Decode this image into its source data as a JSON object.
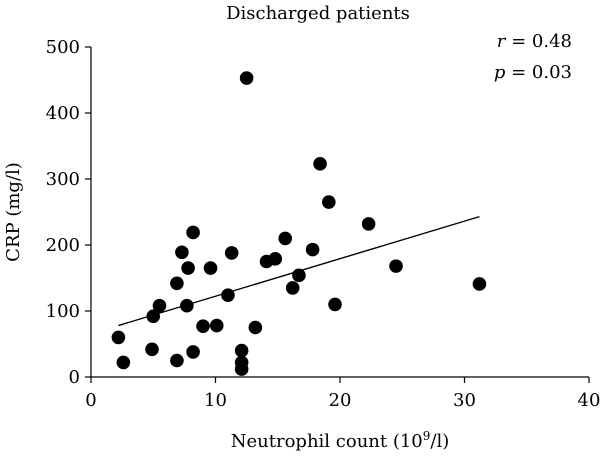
{
  "chart_data": {
    "type": "scatter",
    "title": "Discharged patients",
    "xlabel_main": "Neutrophil count (10",
    "xlabel_sup": "9",
    "xlabel_tail": "/l)",
    "ylabel": "CRP (mg/l)",
    "xlim": [
      0,
      40
    ],
    "ylim": [
      0,
      500
    ],
    "xticks": [
      0,
      10,
      20,
      30,
      40
    ],
    "yticks": [
      0,
      100,
      200,
      300,
      400,
      500
    ],
    "grid": false,
    "stats": {
      "r_symbol": "r",
      "r_value": " = 0.48",
      "p_symbol": "p",
      "p_value": " = 0.03"
    },
    "trendline": {
      "x": [
        2.2,
        31.2
      ],
      "y": [
        78,
        243
      ]
    },
    "points": [
      {
        "x": 2.2,
        "y": 60
      },
      {
        "x": 2.6,
        "y": 22
      },
      {
        "x": 4.9,
        "y": 42
      },
      {
        "x": 5.0,
        "y": 92
      },
      {
        "x": 5.5,
        "y": 108
      },
      {
        "x": 6.9,
        "y": 25
      },
      {
        "x": 6.9,
        "y": 142
      },
      {
        "x": 7.3,
        "y": 189
      },
      {
        "x": 7.7,
        "y": 108
      },
      {
        "x": 7.8,
        "y": 165
      },
      {
        "x": 8.2,
        "y": 38
      },
      {
        "x": 8.2,
        "y": 219
      },
      {
        "x": 9.0,
        "y": 77
      },
      {
        "x": 9.6,
        "y": 165
      },
      {
        "x": 10.1,
        "y": 78
      },
      {
        "x": 11.0,
        "y": 124
      },
      {
        "x": 11.3,
        "y": 188
      },
      {
        "x": 12.1,
        "y": 40
      },
      {
        "x": 12.1,
        "y": 22
      },
      {
        "x": 12.1,
        "y": 12
      },
      {
        "x": 12.5,
        "y": 453
      },
      {
        "x": 13.2,
        "y": 75
      },
      {
        "x": 14.1,
        "y": 175
      },
      {
        "x": 14.8,
        "y": 179
      },
      {
        "x": 15.6,
        "y": 210
      },
      {
        "x": 16.2,
        "y": 135
      },
      {
        "x": 16.7,
        "y": 154
      },
      {
        "x": 17.8,
        "y": 193
      },
      {
        "x": 18.4,
        "y": 323
      },
      {
        "x": 19.1,
        "y": 265
      },
      {
        "x": 19.6,
        "y": 110
      },
      {
        "x": 22.3,
        "y": 232
      },
      {
        "x": 24.5,
        "y": 168
      },
      {
        "x": 31.2,
        "y": 141
      }
    ]
  }
}
